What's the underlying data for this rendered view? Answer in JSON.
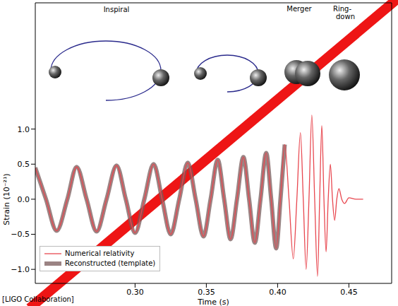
{
  "chart_data": {
    "type": "line",
    "x_label": "Time (s)",
    "y_label": "Strain (10⁻²¹)",
    "annotations": [
      "Inspiral",
      "Merger",
      "Ring-down"
    ],
    "source": "[LIGO Collaboration]",
    "legend": "lower left",
    "grid": false,
    "xlim": [
      0.23,
      0.48
    ],
    "xticks": [
      {
        "value": 0.3,
        "label": "0.30"
      },
      {
        "value": 0.35,
        "label": "0.35"
      },
      {
        "value": 0.4,
        "label": "0.40"
      },
      {
        "value": 0.45,
        "label": "0.45"
      }
    ],
    "ylim": [
      -1.2,
      2.8
    ],
    "yticks": [
      {
        "value": -1,
        "label": "−1.0"
      },
      {
        "value": -0.5,
        "label": "−0.5"
      },
      {
        "value": 0,
        "label": "0.0"
      },
      {
        "value": 0.5,
        "label": "0.5"
      },
      {
        "value": 1,
        "label": "1.0"
      }
    ],
    "x": [
      0.23,
      0.2375,
      0.245,
      0.2525,
      0.259,
      0.266,
      0.273,
      0.28,
      0.287,
      0.2935,
      0.3,
      0.3065,
      0.313,
      0.319,
      0.325,
      0.331,
      0.337,
      0.3425,
      0.348,
      0.353,
      0.358,
      0.3625,
      0.367,
      0.3715,
      0.376,
      0.38,
      0.384,
      0.388,
      0.392,
      0.3955,
      0.399,
      0.402,
      0.405,
      0.408,
      0.411,
      0.4135,
      0.416,
      0.418,
      0.42,
      0.422,
      0.424,
      0.426,
      0.428,
      0.4295,
      0.431,
      0.4325,
      0.434,
      0.4355,
      0.437,
      0.4385,
      0.44,
      0.4415,
      0.443,
      0.445,
      0.447,
      0.45,
      0.455,
      0.46
    ],
    "series": [
      {
        "name": "Reconstructed (template)",
        "color": "#7a5a5a",
        "values": [
          0.45,
          0,
          -0.45,
          0,
          0.46,
          0,
          -0.46,
          0,
          0.48,
          0,
          -0.48,
          0,
          0.5,
          0,
          -0.5,
          0,
          0.52,
          0,
          -0.53,
          0,
          0.56,
          0,
          -0.57,
          0,
          0.6,
          0,
          -0.62,
          0,
          0.66,
          0,
          -0.7,
          0,
          0.78,
          null,
          null,
          null,
          null,
          null,
          null,
          null,
          null,
          null,
          null,
          null,
          null,
          null,
          null,
          null,
          null,
          null,
          null,
          null,
          null,
          null,
          null,
          null,
          null,
          null
        ]
      },
      {
        "name": "Numerical relativity",
        "color": "#e8474f",
        "values": [
          0.45,
          0,
          -0.45,
          0,
          0.46,
          0,
          -0.46,
          0,
          0.48,
          0,
          -0.48,
          0,
          0.5,
          0,
          -0.5,
          0,
          0.52,
          0,
          -0.53,
          0,
          0.56,
          0,
          -0.57,
          0,
          0.6,
          0,
          -0.62,
          0,
          0.66,
          0,
          -0.7,
          0,
          0.78,
          0,
          -0.85,
          0,
          0.95,
          0,
          -1.0,
          0,
          1.2,
          0,
          -1.1,
          0,
          1.05,
          0,
          -0.75,
          0,
          0.5,
          0,
          -0.3,
          0,
          0.15,
          0,
          -0.06,
          0.02,
          0,
          0
        ]
      }
    ]
  }
}
